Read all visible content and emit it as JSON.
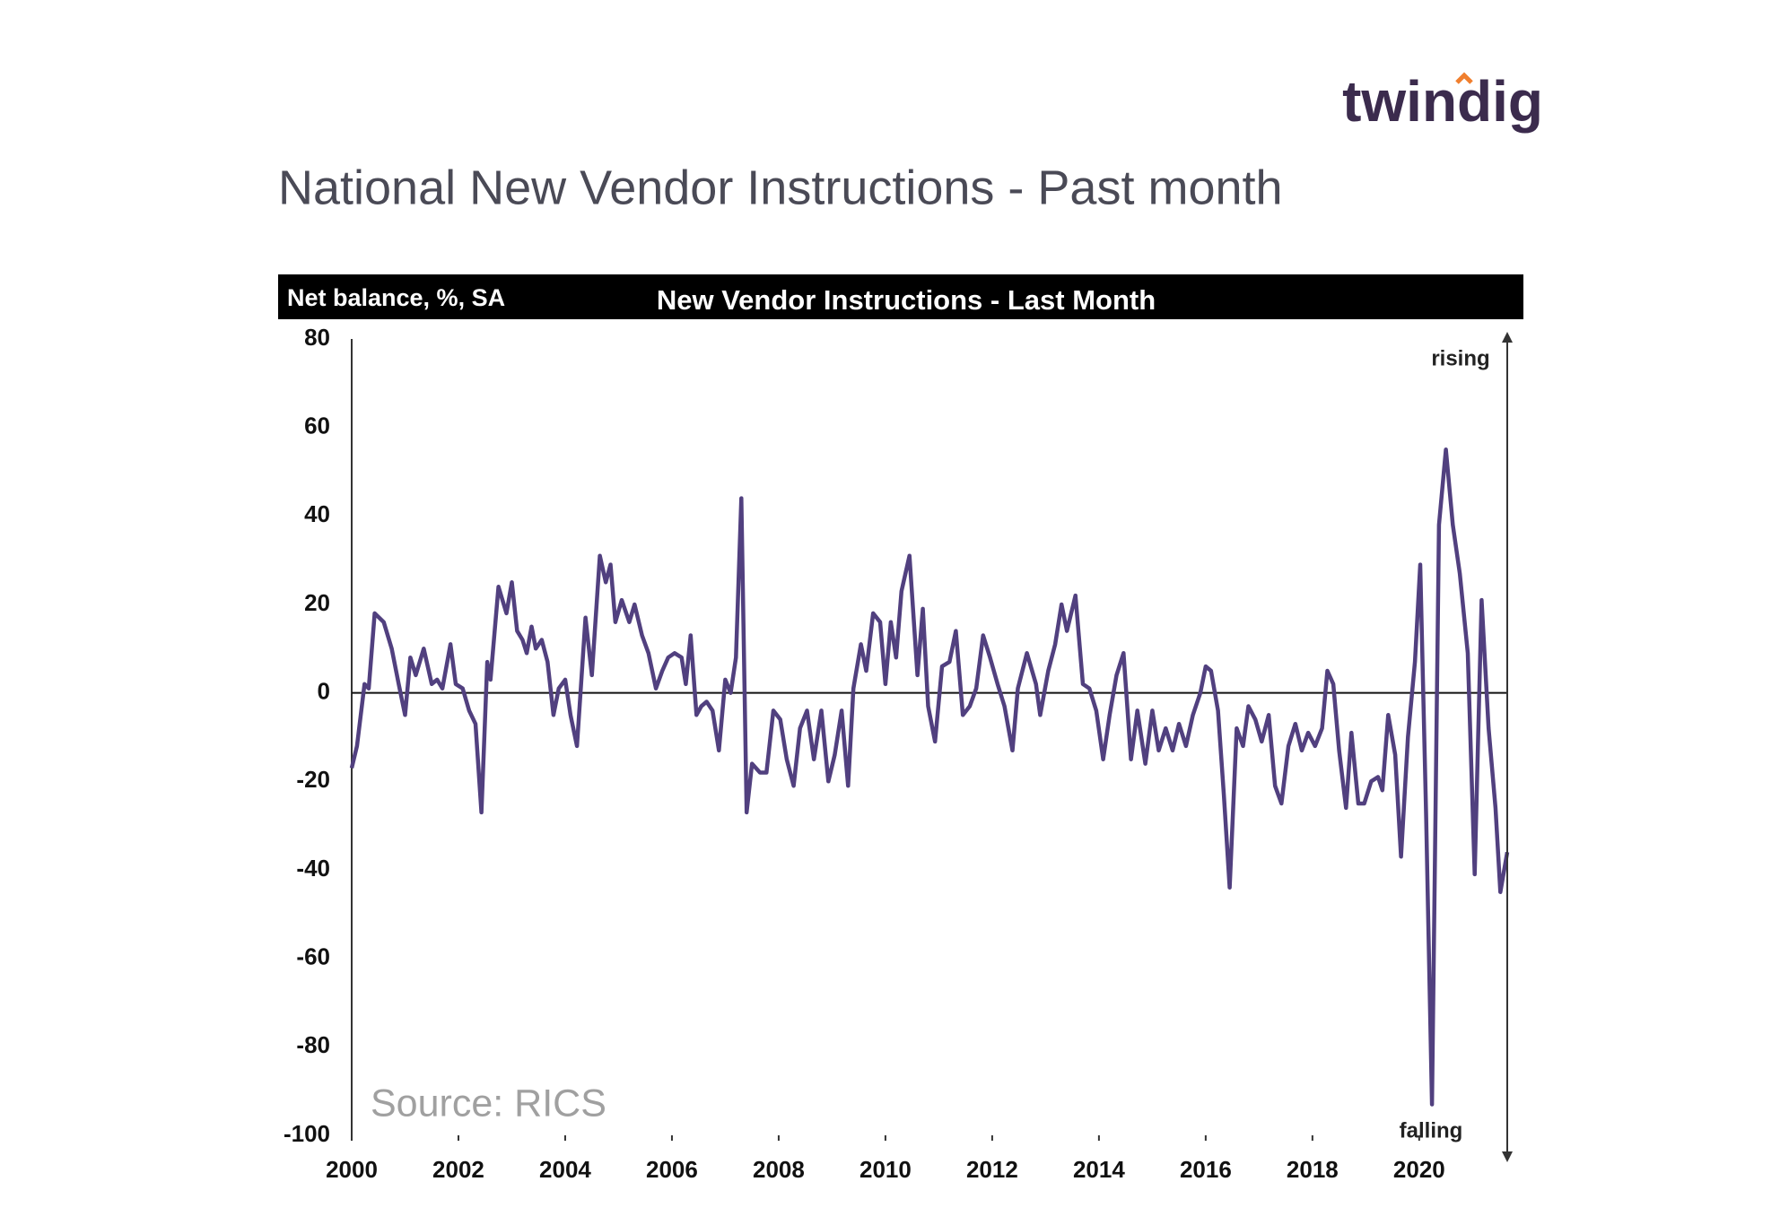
{
  "logo": "twindig",
  "heading": "National New Vendor Instructions - Past month",
  "chart_data": {
    "type": "line",
    "title": "New Vendor Instructions - Last Month",
    "y_label": "Net balance, %, SA",
    "annotations": [
      "rising",
      "falling"
    ],
    "source": "Source: RICS",
    "color": "#51407f",
    "xlim": [
      2000,
      2021.65
    ],
    "xticks": [
      2000,
      2002,
      2004,
      2006,
      2008,
      2010,
      2012,
      2014,
      2016,
      2018,
      2020
    ],
    "ylim": [
      -100,
      80
    ],
    "yticks": [
      -100,
      -80,
      -60,
      -40,
      -20,
      0,
      20,
      40,
      60,
      80
    ],
    "x": [
      2000.0,
      2000.1,
      2000.24,
      2000.32,
      2000.43,
      2000.6,
      2000.75,
      2000.88,
      2001.0,
      2001.1,
      2001.2,
      2001.35,
      2001.5,
      2001.6,
      2001.7,
      2001.85,
      2001.95,
      2002.08,
      2002.2,
      2002.32,
      2002.43,
      2002.54,
      2002.6,
      2002.75,
      2002.9,
      2003.0,
      2003.1,
      2003.2,
      2003.28,
      2003.37,
      2003.45,
      2003.56,
      2003.67,
      2003.78,
      2003.88,
      2004.0,
      2004.1,
      2004.22,
      2004.38,
      2004.5,
      2004.65,
      2004.76,
      2004.85,
      2004.94,
      2005.06,
      2005.2,
      2005.3,
      2005.44,
      2005.56,
      2005.7,
      2005.82,
      2005.93,
      2006.05,
      2006.18,
      2006.26,
      2006.35,
      2006.46,
      2006.55,
      2006.65,
      2006.76,
      2006.88,
      2007.0,
      2007.1,
      2007.2,
      2007.3,
      2007.4,
      2007.5,
      2007.65,
      2007.77,
      2007.9,
      2008.03,
      2008.15,
      2008.28,
      2008.4,
      2008.53,
      2008.66,
      2008.8,
      2008.93,
      2009.05,
      2009.18,
      2009.3,
      2009.4,
      2009.54,
      2009.64,
      2009.77,
      2009.9,
      2010.0,
      2010.1,
      2010.2,
      2010.3,
      2010.45,
      2010.6,
      2010.7,
      2010.8,
      2010.93,
      2011.06,
      2011.2,
      2011.32,
      2011.45,
      2011.58,
      2011.7,
      2011.83,
      2011.96,
      2012.1,
      2012.23,
      2012.38,
      2012.48,
      2012.65,
      2012.82,
      2012.9,
      2013.05,
      2013.18,
      2013.3,
      2013.4,
      2013.56,
      2013.7,
      2013.82,
      2013.95,
      2014.08,
      2014.2,
      2014.33,
      2014.46,
      2014.6,
      2014.72,
      2014.87,
      2015.0,
      2015.12,
      2015.25,
      2015.38,
      2015.5,
      2015.63,
      2015.76,
      2015.9,
      2016.0,
      2016.1,
      2016.23,
      2016.34,
      2016.45,
      2016.58,
      2016.7,
      2016.8,
      2016.93,
      2017.05,
      2017.18,
      2017.3,
      2017.42,
      2017.55,
      2017.68,
      2017.8,
      2017.92,
      2018.05,
      2018.18,
      2018.28,
      2018.39,
      2018.5,
      2018.63,
      2018.73,
      2018.86,
      2018.97,
      2019.1,
      2019.23,
      2019.31,
      2019.42,
      2019.55,
      2019.66,
      2019.79,
      2019.92,
      2020.02,
      2020.13,
      2020.24,
      2020.37,
      2020.5,
      2020.63,
      2020.76,
      2020.91,
      2021.04,
      2021.17,
      2021.3,
      2021.43,
      2021.52,
      2021.65
    ],
    "values": [
      -17,
      -12,
      2,
      1,
      18,
      16,
      10,
      2,
      -5,
      8,
      4,
      10,
      2,
      3,
      1,
      11,
      2,
      1,
      -4,
      -7,
      -27,
      7,
      3,
      24,
      18,
      25,
      14,
      12,
      9,
      15,
      10,
      12,
      7,
      -5,
      1,
      3,
      -5,
      -12,
      17,
      4,
      31,
      25,
      29,
      16,
      21,
      16,
      20,
      13,
      9,
      1,
      5,
      8,
      9,
      8,
      2,
      13,
      -5,
      -3,
      -2,
      -4,
      -13,
      3,
      0,
      8,
      44,
      -27,
      -16,
      -18,
      -18,
      -4,
      -6,
      -15,
      -21,
      -8,
      -4,
      -15,
      -4,
      -20,
      -14,
      -4,
      -21,
      1,
      11,
      5,
      18,
      16,
      2,
      16,
      8,
      23,
      31,
      4,
      19,
      -3,
      -11,
      6,
      7,
      14,
      -5,
      -3,
      1,
      13,
      8,
      2,
      -3,
      -13,
      1,
      9,
      2,
      -5,
      5,
      11,
      20,
      14,
      22,
      2,
      1,
      -4,
      -15,
      -5,
      4,
      9,
      -15,
      -4,
      -16,
      -4,
      -13,
      -8,
      -13,
      -7,
      -12,
      -5,
      0,
      6,
      5,
      -4,
      -23,
      -44,
      -8,
      -12,
      -3,
      -6,
      -11,
      -5,
      -21,
      -25,
      -12,
      -7,
      -13,
      -9,
      -12,
      -8,
      5,
      2,
      -13,
      -26,
      -9,
      -25,
      -25,
      -20,
      -19,
      -22,
      -5,
      -14,
      -37,
      -10,
      7,
      29,
      -28,
      -93,
      38,
      55,
      38,
      27,
      9,
      -41,
      21,
      -8,
      -26,
      -45,
      -36
    ]
  }
}
